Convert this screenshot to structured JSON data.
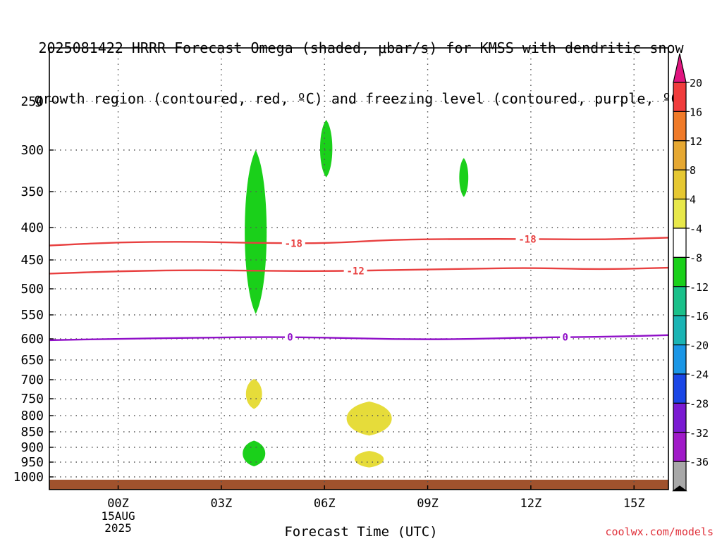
{
  "title": {
    "line1": "2025081422 HRRR Forecast Omega (shaded, μbar/s) for KMSS with dendritic snow",
    "line2": "growth region (contoured, red, ºC) and freezing level (contoured, purple, ºC)"
  },
  "credit": "coolwx.com/models",
  "chart_data": {
    "type": "heatmap",
    "xlabel": "Forecast Time (UTC)",
    "ylabel": "",
    "x_ticks": [
      "00Z",
      "03Z",
      "06Z",
      "09Z",
      "12Z",
      "15Z"
    ],
    "x_tick_hours": [
      0,
      3,
      6,
      9,
      12,
      15
    ],
    "x_sublabels": [
      "15AUG",
      "2025"
    ],
    "xlim_hours": [
      -2,
      16
    ],
    "y_ticks": [
      250,
      300,
      350,
      400,
      450,
      500,
      550,
      600,
      650,
      700,
      750,
      800,
      850,
      900,
      950,
      1000
    ],
    "ylim_hpa": [
      200,
      1012
    ],
    "grid": true,
    "colorbar": {
      "labels": [
        "20",
        "16",
        "12",
        "8",
        "4",
        "-4",
        "-8",
        "-12",
        "-16",
        "-20",
        "-24",
        "-28",
        "-32",
        "-36"
      ],
      "top_triangle_color": "#e0157f",
      "bottom_triangle_color": "#000000",
      "colors": [
        "#f03c3c",
        "#f07a28",
        "#e6a832",
        "#e6c832",
        "#e8e84a",
        "#ffffff",
        "#1ad01a",
        "#1ac08a",
        "#1ab4b4",
        "#1a96e6",
        "#1a46e6",
        "#7a1ad2",
        "#a01ac8",
        "#a8a8a8"
      ]
    },
    "omega_regions": [
      {
        "name": "ascent",
        "color": "#1ad01a",
        "value_range": [
          -8,
          -4
        ],
        "hour": 4.0,
        "top_hpa": 300,
        "bottom_hpa": 548,
        "half_width_hours": 0.34
      },
      {
        "name": "ascent",
        "color": "#1ad01a",
        "value_range": [
          -8,
          -4
        ],
        "hour": 6.05,
        "top_hpa": 268,
        "bottom_hpa": 332,
        "half_width_hours": 0.19
      },
      {
        "name": "ascent",
        "color": "#1ad01a",
        "value_range": [
          -8,
          -4
        ],
        "hour": 10.05,
        "top_hpa": 309,
        "bottom_hpa": 357,
        "half_width_hours": 0.14
      },
      {
        "name": "ascent",
        "color": "#1ad01a",
        "value_range": [
          -8,
          -4
        ],
        "hour": 3.95,
        "top_hpa": 878,
        "bottom_hpa": 964,
        "half_width_hours": 0.35
      },
      {
        "name": "descent",
        "color": "#e6dc3a",
        "value_range": [
          4,
          8
        ],
        "hour": 3.95,
        "top_hpa": 698,
        "bottom_hpa": 780,
        "half_width_hours": 0.25
      },
      {
        "name": "descent",
        "color": "#e6dc3a",
        "value_range": [
          4,
          8
        ],
        "hour": 7.3,
        "top_hpa": 758,
        "bottom_hpa": 862,
        "half_width_hours": 0.7
      },
      {
        "name": "descent",
        "color": "#e6dc3a",
        "value_range": [
          4,
          8
        ],
        "hour": 7.3,
        "top_hpa": 912,
        "bottom_hpa": 968,
        "half_width_hours": 0.45
      }
    ],
    "contours": [
      {
        "label": "-18",
        "color": "#e84040",
        "label_hours": [
          5.1,
          11.9
        ],
        "points": [
          [
            -2,
            427
          ],
          [
            0,
            422
          ],
          [
            2,
            421
          ],
          [
            4,
            423
          ],
          [
            6,
            424
          ],
          [
            8,
            418
          ],
          [
            10,
            417
          ],
          [
            12,
            417
          ],
          [
            14,
            418
          ],
          [
            16,
            415
          ]
        ]
      },
      {
        "label": "-12",
        "color": "#e84040",
        "label_hours": [
          6.9
        ],
        "points": [
          [
            -2,
            473
          ],
          [
            0,
            469
          ],
          [
            2,
            467
          ],
          [
            4,
            468
          ],
          [
            6,
            469
          ],
          [
            8,
            467
          ],
          [
            10,
            465
          ],
          [
            12,
            463
          ],
          [
            14,
            466
          ],
          [
            16,
            463
          ]
        ]
      },
      {
        "label": "0",
        "color": "#9010c8",
        "label_hours": [
          5.0,
          13.0
        ],
        "points": [
          [
            -2,
            603
          ],
          [
            0,
            600
          ],
          [
            2,
            598
          ],
          [
            4,
            596
          ],
          [
            6,
            597
          ],
          [
            8,
            601
          ],
          [
            10,
            601
          ],
          [
            12,
            597
          ],
          [
            14,
            596
          ],
          [
            16,
            592
          ]
        ]
      }
    ],
    "ground_hpa": 1012
  }
}
